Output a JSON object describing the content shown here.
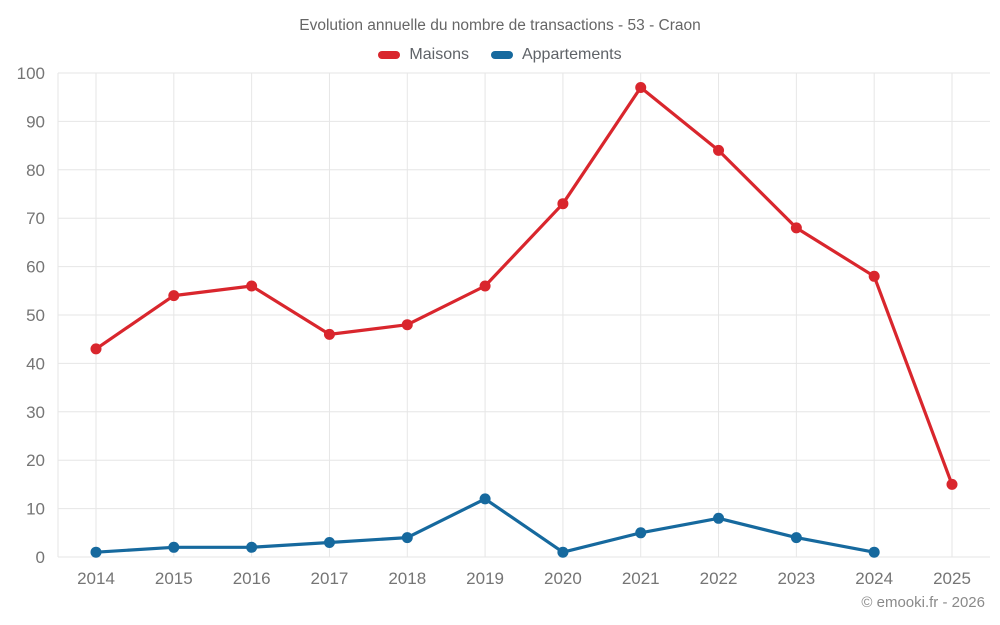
{
  "footer": {
    "copyright": "© emooki.fr - 2026"
  },
  "chart_data": {
    "type": "line",
    "title": "Evolution annuelle du nombre de transactions - 53 - Craon",
    "x": [
      2014,
      2015,
      2016,
      2017,
      2018,
      2019,
      2020,
      2021,
      2022,
      2023,
      2024,
      2025
    ],
    "series": [
      {
        "name": "Maisons",
        "color": "#d9262d",
        "values": [
          43,
          54,
          56,
          46,
          48,
          56,
          73,
          97,
          84,
          68,
          58,
          15
        ]
      },
      {
        "name": "Appartements",
        "color": "#16699e",
        "values": [
          1,
          2,
          2,
          3,
          4,
          12,
          1,
          5,
          8,
          4,
          1,
          null
        ]
      }
    ],
    "xlabel": "",
    "ylabel": "",
    "ylim": [
      0,
      100
    ],
    "ytick_step": 10,
    "yticks": [
      0,
      10,
      20,
      30,
      40,
      50,
      60,
      70,
      80,
      90,
      100
    ],
    "grid": true,
    "grid_color": "#e6e6e6",
    "axis_label_color": "#757575",
    "legend_position": "top"
  }
}
